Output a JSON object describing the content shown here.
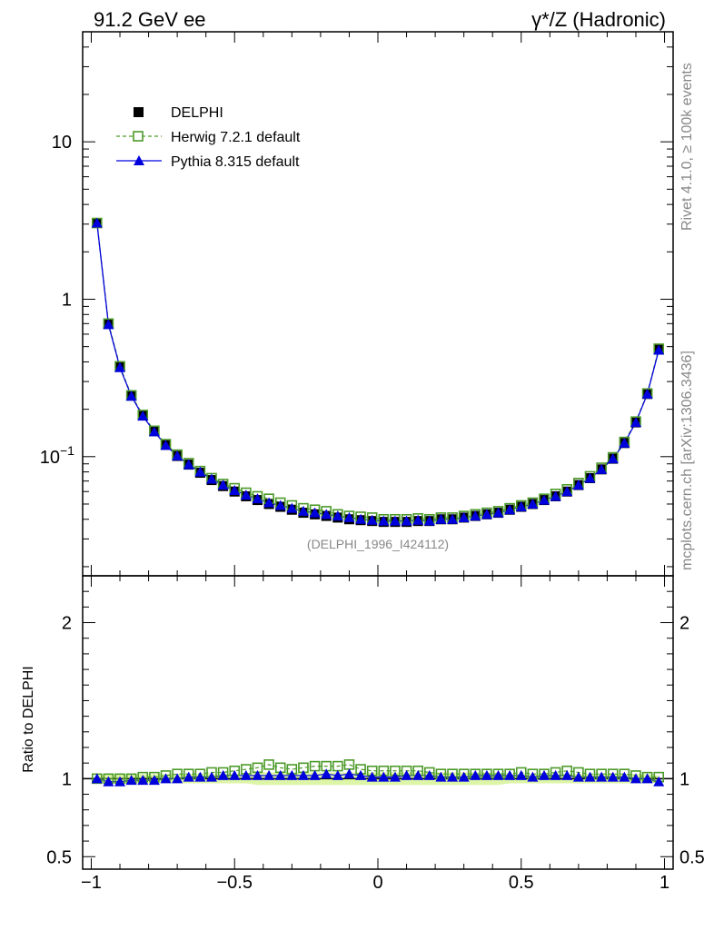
{
  "header": {
    "left_title": "91.2 GeV ee",
    "right_title": "γ*/Z (Hadronic)"
  },
  "side_labels": {
    "rivet": "Rivet 4.1.0, ≥ 100k events",
    "mcplots": "mcplots.cern.ch [arXiv:1306.3436]"
  },
  "watermark": "(DELPHI_1996_I424112)",
  "legend": [
    {
      "name": "DELPHI",
      "color": "#000000",
      "marker": "filled-square"
    },
    {
      "name": "Herwig 7.2.1 default",
      "color": "#4c9a2a",
      "marker": "open-square"
    },
    {
      "name": "Pythia 8.315 default",
      "color": "#0000dd",
      "marker": "filled-triangle"
    }
  ],
  "colors": {
    "band": "#ddf5a6",
    "line": "#000000"
  },
  "chart_data": {
    "type": "scatter",
    "xlabel": "",
    "ylabel": "",
    "xlim": [
      -1.03,
      1.03
    ],
    "main_ylim_log": [
      0.0175,
      50
    ],
    "ratio_ylim": [
      0.42,
      2.3
    ],
    "ratio_ylabel": "Ratio to DELPHI",
    "x_ticks": [
      {
        "v": -1,
        "label": "−1"
      },
      {
        "v": -0.5,
        "label": "−0.5"
      },
      {
        "v": 0,
        "label": "0"
      },
      {
        "v": 0.5,
        "label": "0.5"
      },
      {
        "v": 1,
        "label": "1"
      }
    ],
    "main_y_ticks": [
      {
        "v": 10,
        "label": "10"
      },
      {
        "v": 1,
        "label": "1"
      },
      {
        "v": 0.1,
        "label": "10"
      }
    ],
    "main_y_tick_exponent": "−1",
    "ratio_y_ticks": [
      {
        "v": 2,
        "label": "2"
      },
      {
        "v": 1,
        "label": "1"
      },
      {
        "v": 0.5,
        "label": "0.5"
      }
    ],
    "x": [
      -0.98,
      -0.94,
      -0.9,
      -0.86,
      -0.82,
      -0.78,
      -0.74,
      -0.7,
      -0.66,
      -0.62,
      -0.58,
      -0.54,
      -0.5,
      -0.46,
      -0.42,
      -0.38,
      -0.34,
      -0.3,
      -0.26,
      -0.22,
      -0.18,
      -0.14,
      -0.1,
      -0.06,
      -0.02,
      0.02,
      0.06,
      0.1,
      0.14,
      0.18,
      0.22,
      0.26,
      0.3,
      0.34,
      0.38,
      0.42,
      0.46,
      0.5,
      0.54,
      0.58,
      0.62,
      0.66,
      0.7,
      0.74,
      0.78,
      0.82,
      0.86,
      0.9,
      0.94,
      0.98
    ],
    "series": [
      {
        "name": "DELPHI",
        "values": [
          3.05,
          0.7,
          0.375,
          0.245,
          0.183,
          0.145,
          0.119,
          0.101,
          0.089,
          0.079,
          0.071,
          0.065,
          0.06,
          0.056,
          0.053,
          0.05,
          0.048,
          0.046,
          0.044,
          0.043,
          0.042,
          0.041,
          0.04,
          0.0395,
          0.039,
          0.0385,
          0.0385,
          0.0385,
          0.039,
          0.039,
          0.04,
          0.04,
          0.041,
          0.042,
          0.043,
          0.044,
          0.046,
          0.048,
          0.05,
          0.053,
          0.056,
          0.06,
          0.066,
          0.073,
          0.083,
          0.097,
          0.122,
          0.165,
          0.25,
          0.48
        ]
      },
      {
        "name": "Herwig 7.2.1 default",
        "values": [
          3.05,
          0.7,
          0.375,
          0.245,
          0.184,
          0.146,
          0.12,
          0.103,
          0.091,
          0.081,
          0.073,
          0.067,
          0.063,
          0.059,
          0.056,
          0.054,
          0.051,
          0.049,
          0.047,
          0.046,
          0.045,
          0.043,
          0.042,
          0.0415,
          0.041,
          0.04,
          0.04,
          0.04,
          0.0405,
          0.04,
          0.041,
          0.041,
          0.042,
          0.043,
          0.044,
          0.045,
          0.047,
          0.049,
          0.051,
          0.054,
          0.058,
          0.062,
          0.068,
          0.075,
          0.085,
          0.099,
          0.124,
          0.167,
          0.252,
          0.485
        ]
      },
      {
        "name": "Pythia 8.315 default",
        "values": [
          3.05,
          0.69,
          0.368,
          0.242,
          0.181,
          0.144,
          0.118,
          0.101,
          0.089,
          0.08,
          0.072,
          0.066,
          0.061,
          0.057,
          0.054,
          0.051,
          0.049,
          0.047,
          0.045,
          0.044,
          0.043,
          0.042,
          0.041,
          0.04,
          0.0395,
          0.039,
          0.039,
          0.039,
          0.0395,
          0.039,
          0.04,
          0.04,
          0.041,
          0.042,
          0.043,
          0.044,
          0.046,
          0.048,
          0.05,
          0.053,
          0.056,
          0.06,
          0.066,
          0.073,
          0.083,
          0.097,
          0.122,
          0.165,
          0.25,
          0.475
        ]
      }
    ],
    "ratios": [
      {
        "name": "Herwig 7.2.1 default",
        "values": [
          1.0,
          1.0,
          1.0,
          1.0,
          1.01,
          1.01,
          1.02,
          1.03,
          1.03,
          1.03,
          1.04,
          1.04,
          1.05,
          1.06,
          1.07,
          1.09,
          1.07,
          1.06,
          1.07,
          1.08,
          1.08,
          1.08,
          1.09,
          1.06,
          1.05,
          1.05,
          1.05,
          1.05,
          1.05,
          1.04,
          1.03,
          1.03,
          1.03,
          1.03,
          1.03,
          1.03,
          1.03,
          1.04,
          1.03,
          1.03,
          1.04,
          1.05,
          1.04,
          1.03,
          1.03,
          1.03,
          1.03,
          1.02,
          1.01,
          1.01
        ]
      },
      {
        "name": "Pythia 8.315 default",
        "values": [
          1.0,
          0.98,
          0.98,
          0.99,
          0.99,
          0.99,
          1.0,
          1.0,
          1.01,
          1.01,
          1.01,
          1.02,
          1.02,
          1.02,
          1.02,
          1.02,
          1.02,
          1.02,
          1.02,
          1.02,
          1.03,
          1.02,
          1.03,
          1.02,
          1.01,
          1.01,
          1.01,
          1.02,
          1.02,
          1.02,
          1.01,
          1.01,
          1.01,
          1.02,
          1.02,
          1.02,
          1.02,
          1.02,
          1.01,
          1.02,
          1.02,
          1.02,
          1.01,
          1.01,
          1.01,
          1.01,
          1.01,
          1.0,
          1.0,
          0.98
        ]
      }
    ],
    "data_band": {
      "lower": [
        0.98,
        0.97,
        0.97,
        0.97,
        0.97,
        0.97,
        0.97,
        0.97,
        0.97,
        0.97,
        0.97,
        0.97,
        0.97,
        0.97,
        0.96,
        0.96,
        0.96,
        0.96,
        0.96,
        0.96,
        0.96,
        0.96,
        0.96,
        0.96,
        0.96,
        0.96,
        0.96,
        0.96,
        0.96,
        0.96,
        0.96,
        0.96,
        0.96,
        0.96,
        0.96,
        0.96,
        0.97,
        0.97,
        0.97,
        0.97,
        0.97,
        0.97,
        0.97,
        0.97,
        0.97,
        0.97,
        0.97,
        0.97,
        0.97,
        0.98
      ],
      "upper": [
        1.02,
        1.03,
        1.03,
        1.03,
        1.03,
        1.03,
        1.03,
        1.03,
        1.03,
        1.03,
        1.03,
        1.03,
        1.03,
        1.03,
        1.04,
        1.04,
        1.04,
        1.04,
        1.04,
        1.04,
        1.04,
        1.04,
        1.04,
        1.04,
        1.04,
        1.04,
        1.04,
        1.04,
        1.04,
        1.04,
        1.04,
        1.04,
        1.04,
        1.04,
        1.04,
        1.04,
        1.03,
        1.03,
        1.03,
        1.03,
        1.03,
        1.03,
        1.03,
        1.03,
        1.03,
        1.03,
        1.03,
        1.03,
        1.03,
        1.02
      ]
    }
  }
}
